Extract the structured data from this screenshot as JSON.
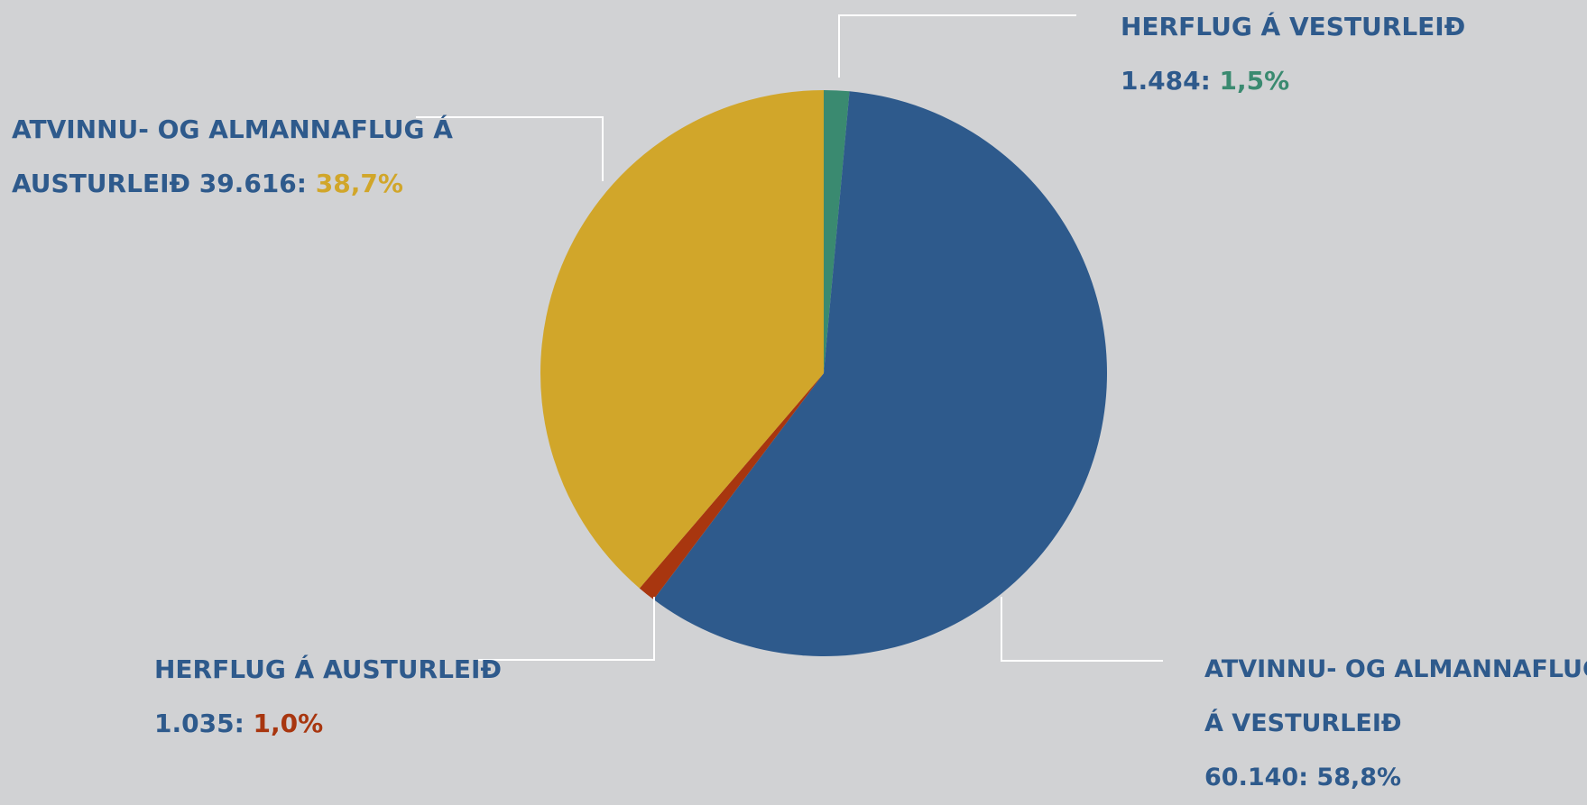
{
  "chart_data": {
    "type": "pie",
    "slices": [
      {
        "key": "herflug_vestur",
        "name_lines": [
          "HERFLUG Á VESTURLEIÐ"
        ],
        "value": 1484,
        "value_label": "1.484",
        "percent": 1.5,
        "percent_label": "1,5%",
        "color": "#3a8a70"
      },
      {
        "key": "atvinnu_vestur",
        "name_lines": [
          "ATVINNU- OG ALMANNAFLUG",
          "Á VESTURLEIÐ"
        ],
        "value": 60140,
        "value_label": "60.140",
        "percent": 58.8,
        "percent_label": "58,8%",
        "color": "#2e5a8c"
      },
      {
        "key": "herflug_austur",
        "name_lines": [
          "HERFLUG Á AUSTURLEIÐ"
        ],
        "value": 1035,
        "value_label": "1.035",
        "percent": 1.0,
        "percent_label": "1,0%",
        "color": "#a8360f"
      },
      {
        "key": "atvinnu_austur",
        "name_lines": [
          "ATVINNU- OG ALMANNAFLUG Á",
          "AUSTURLEIÐ"
        ],
        "value": 39616,
        "value_label": "39.616",
        "percent": 38.7,
        "percent_label": "38,7%",
        "color": "#d1a62a"
      }
    ],
    "label_color": "#2e5a8c",
    "leader_line_color": "#ffffff",
    "background": "#d1d2d4"
  }
}
